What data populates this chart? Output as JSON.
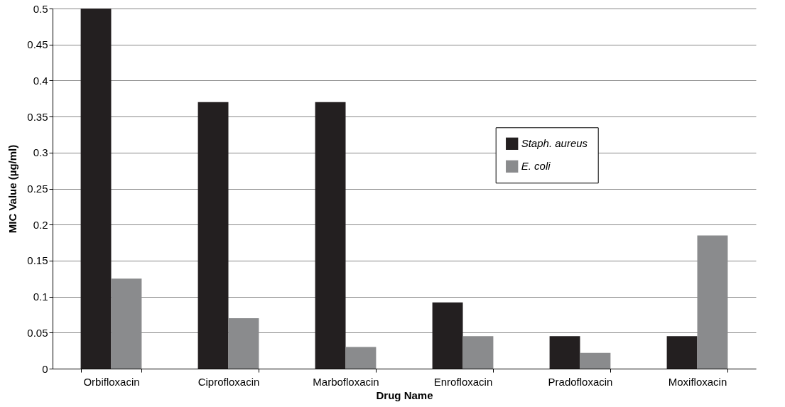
{
  "chart_data": {
    "type": "bar",
    "xlabel": "Drug Name",
    "ylabel": "MIC Value (µg/ml)",
    "categories": [
      "Orbifloxacin",
      "Ciprofloxacin",
      "Marbofloxacin",
      "Enrofloxacin",
      "Pradofloxacin",
      "Moxifloxacin"
    ],
    "series": [
      {
        "name": "Staph. aureus",
        "color": "#231f20",
        "values": [
          0.5,
          0.37,
          0.37,
          0.092,
          0.045,
          0.045
        ]
      },
      {
        "name": "E. coli",
        "color": "#8a8b8d",
        "values": [
          0.125,
          0.07,
          0.03,
          0.045,
          0.022,
          0.185
        ]
      }
    ],
    "ylim": [
      0,
      0.5
    ],
    "yticks": [
      0,
      0.05,
      0.1,
      0.15,
      0.2,
      0.25,
      0.3,
      0.35,
      0.4,
      0.45,
      0.5
    ],
    "grid": "y",
    "legend": "right"
  }
}
